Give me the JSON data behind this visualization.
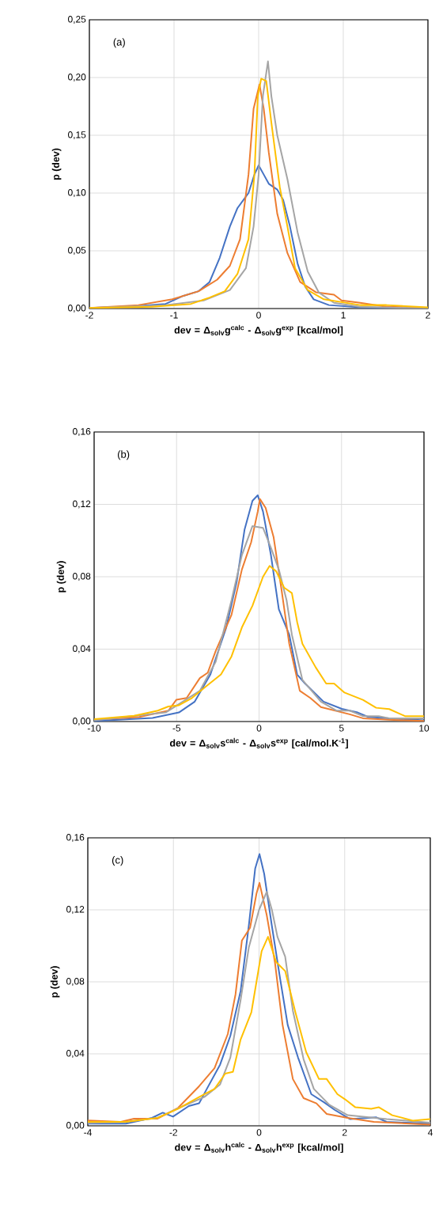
{
  "chart_data": [
    {
      "type": "line",
      "xlabel": "dev = Δ$_{solv}$g$^{calc}$ - Δ$_{solv}$g$^{exp}$ [kcal/mol]",
      "ylabel": "p (dev)",
      "annotations": [
        "(a)"
      ],
      "grid": true,
      "xlim": [
        -2,
        2
      ],
      "xticks": [
        -2,
        -1,
        0,
        1,
        2
      ],
      "ylim": [
        0,
        0.25
      ],
      "yticks": [
        {
          "value": 0,
          "label": "0,00"
        },
        {
          "value": 0.05,
          "label": "0,05"
        },
        {
          "value": 0.1,
          "label": "0,10"
        },
        {
          "value": 0.15,
          "label": "0,15"
        },
        {
          "value": 0.2,
          "label": "0,20"
        },
        {
          "value": 0.25,
          "label": "0,25"
        }
      ],
      "series": [
        {
          "color": "#4472c4",
          "x": [
            -2,
            -1.57,
            -1.1,
            -0.89,
            -0.71,
            -0.58,
            -0.46,
            -0.34,
            -0.25,
            -0.12,
            -0.05,
            0,
            0.06,
            0.12,
            0.22,
            0.29,
            0.37,
            0.46,
            0.55,
            0.65,
            0.83,
            1.2,
            2
          ],
          "values": [
            0.0005,
            0.0016,
            0.004,
            0.011,
            0.015,
            0.023,
            0.044,
            0.071,
            0.087,
            0.1,
            0.116,
            0.124,
            0.116,
            0.108,
            0.103,
            0.094,
            0.071,
            0.039,
            0.019,
            0.008,
            0.003,
            0.001,
            0
          ]
        },
        {
          "color": "#ed7d31",
          "x": [
            -2,
            -1.42,
            -1.02,
            -0.71,
            -0.49,
            -0.34,
            -0.22,
            -0.12,
            -0.06,
            0.01,
            0.06,
            0.12,
            0.22,
            0.34,
            0.49,
            0.68,
            0.89,
            0.98,
            1.2,
            1.51,
            2
          ],
          "values": [
            0.0005,
            0.003,
            0.008,
            0.015,
            0.025,
            0.037,
            0.06,
            0.116,
            0.173,
            0.194,
            0.173,
            0.135,
            0.082,
            0.048,
            0.023,
            0.014,
            0.012,
            0.007,
            0.005,
            0.0016,
            0.0005
          ]
        },
        {
          "color": "#a5a5a5",
          "x": [
            -2,
            -1.1,
            -0.65,
            -0.34,
            -0.15,
            -0.06,
            0,
            0.05,
            0.11,
            0.15,
            0.22,
            0.34,
            0.46,
            0.58,
            0.71,
            0.89,
            1.2,
            2
          ],
          "values": [
            0.0005,
            0.003,
            0.007,
            0.016,
            0.035,
            0.071,
            0.116,
            0.184,
            0.214,
            0.184,
            0.15,
            0.112,
            0.066,
            0.032,
            0.014,
            0.005,
            0.0016,
            0
          ]
        },
        {
          "color": "#ffc000",
          "x": [
            -2,
            -1.26,
            -0.8,
            -0.58,
            -0.4,
            -0.25,
            -0.12,
            -0.05,
            -0.01,
            0.03,
            0.09,
            0.15,
            0.25,
            0.34,
            0.43,
            0.58,
            0.77,
            1.2,
            1.51,
            2
          ],
          "values": [
            0.0005,
            0.0016,
            0.004,
            0.0095,
            0.015,
            0.03,
            0.06,
            0.116,
            0.184,
            0.199,
            0.197,
            0.161,
            0.105,
            0.071,
            0.035,
            0.016,
            0.008,
            0.003,
            0.003,
            0.001
          ]
        }
      ]
    },
    {
      "type": "line",
      "xlabel": "dev = Δ$_{solv}$s$^{calc}$ - Δ$_{solv}$s$^{exp}$ [cal/mol.K$^{-1}$]",
      "ylabel": "p (dev)",
      "annotations": [
        "(b)"
      ],
      "grid": true,
      "xlim": [
        -10,
        10
      ],
      "xticks": [
        -10,
        -5,
        0,
        5,
        10
      ],
      "ylim": [
        0,
        0.16
      ],
      "yticks": [
        {
          "value": 0,
          "label": "0,00"
        },
        {
          "value": 0.04,
          "label": "0,04"
        },
        {
          "value": 0.08,
          "label": "0,08"
        },
        {
          "value": 0.12,
          "label": "0,12"
        },
        {
          "value": 0.16,
          "label": "0,16"
        }
      ],
      "series": [
        {
          "color": "#4472c4",
          "x": [
            -10,
            -6.46,
            -4.86,
            -3.9,
            -2.95,
            -1.99,
            -1.36,
            -0.88,
            -0.4,
            -0.08,
            0.24,
            0.72,
            1.2,
            1.83,
            2.31,
            2.79,
            3.91,
            5.02,
            5.98,
            6.62,
            7.89,
            10
          ],
          "values": [
            0.0003,
            0.002,
            0.005,
            0.011,
            0.026,
            0.052,
            0.077,
            0.106,
            0.122,
            0.125,
            0.116,
            0.092,
            0.062,
            0.048,
            0.026,
            0.021,
            0.011,
            0.007,
            0.005,
            0.0025,
            0.0018,
            0.0007
          ]
        },
        {
          "color": "#ed7d31",
          "x": [
            -10,
            -7.26,
            -5.5,
            -5.02,
            -4.39,
            -3.59,
            -3.11,
            -2.63,
            -1.67,
            -1.04,
            -0.48,
            -0.08,
            0.05,
            0.4,
            0.88,
            1.36,
            1.83,
            2.47,
            3.11,
            3.75,
            5.5,
            6.3,
            7.89,
            10
          ],
          "values": [
            0.001,
            0.0025,
            0.006,
            0.012,
            0.013,
            0.024,
            0.027,
            0.039,
            0.059,
            0.084,
            0.099,
            0.116,
            0.123,
            0.118,
            0.102,
            0.073,
            0.043,
            0.017,
            0.013,
            0.008,
            0.004,
            0.0018,
            0.001,
            0.0003
          ]
        },
        {
          "color": "#a5a5a5",
          "x": [
            -10,
            -5.66,
            -3.59,
            -2.63,
            -1.67,
            -1.04,
            -0.4,
            0.24,
            0.72,
            1.2,
            1.67,
            1.99,
            2.63,
            3.75,
            4.71,
            5.5,
            6.3,
            7.26,
            7.89,
            10
          ],
          "values": [
            0.0007,
            0.005,
            0.017,
            0.033,
            0.067,
            0.092,
            0.108,
            0.107,
            0.096,
            0.084,
            0.067,
            0.048,
            0.023,
            0.011,
            0.006,
            0.006,
            0.003,
            0.003,
            0.0018,
            0.0018
          ]
        },
        {
          "color": "#ffc000",
          "x": [
            -10,
            -7.58,
            -6.14,
            -5.5,
            -4.86,
            -4.07,
            -3.27,
            -2.31,
            -1.67,
            -1.04,
            -0.4,
            0.24,
            0.64,
            1.04,
            1.52,
            1.99,
            2.31,
            2.63,
            3.43,
            4.07,
            4.55,
            5.18,
            6.3,
            7.1,
            7.89,
            8.85,
            10
          ],
          "values": [
            0.0013,
            0.0032,
            0.006,
            0.0083,
            0.009,
            0.013,
            0.019,
            0.026,
            0.036,
            0.052,
            0.064,
            0.08,
            0.086,
            0.083,
            0.074,
            0.071,
            0.055,
            0.043,
            0.03,
            0.021,
            0.021,
            0.016,
            0.012,
            0.0076,
            0.0069,
            0.003,
            0.003
          ]
        }
      ]
    },
    {
      "type": "line",
      "xlabel": "dev = Δ$_{solv}$h$^{calc}$ - Δ$_{solv}$h$^{exp}$ [kcal/mol]",
      "ylabel": "p (dev)",
      "annotations": [
        "(c)"
      ],
      "grid": true,
      "xlim": [
        -4,
        4
      ],
      "xticks": [
        -4,
        -2,
        0,
        2,
        4
      ],
      "ylim": [
        0,
        0.16
      ],
      "yticks": [
        {
          "value": 0,
          "label": "0,00"
        },
        {
          "value": 0.04,
          "label": "0,04"
        },
        {
          "value": 0.08,
          "label": "0,08"
        },
        {
          "value": 0.12,
          "label": "0,12"
        },
        {
          "value": 0.16,
          "label": "0,16"
        }
      ],
      "series": [
        {
          "color": "#4472c4",
          "x": [
            -4,
            -3.11,
            -2.5,
            -2.25,
            -2.01,
            -1.64,
            -1.4,
            -1.22,
            -0.91,
            -0.67,
            -0.43,
            -0.24,
            -0.09,
            0.01,
            0.12,
            0.3,
            0.49,
            0.67,
            0.91,
            1.22,
            1.52,
            1.77,
            2.13,
            2.74,
            2.98,
            4
          ],
          "values": [
            0.0012,
            0.0012,
            0.0044,
            0.0073,
            0.0051,
            0.011,
            0.0125,
            0.0205,
            0.034,
            0.05,
            0.075,
            0.111,
            0.143,
            0.151,
            0.14,
            0.111,
            0.082,
            0.056,
            0.038,
            0.0176,
            0.013,
            0.0088,
            0.0037,
            0.0047,
            0.0022,
            0.0012
          ]
        },
        {
          "color": "#ed7d31",
          "x": [
            -4,
            -3.23,
            -2.92,
            -2.37,
            -1.89,
            -1.4,
            -1.04,
            -0.73,
            -0.55,
            -0.4,
            -0.21,
            -0.06,
            0.01,
            0.18,
            0.37,
            0.55,
            0.79,
            1.04,
            1.34,
            1.58,
            2.07,
            2.68,
            4
          ],
          "values": [
            0.003,
            0.0022,
            0.004,
            0.004,
            0.01,
            0.022,
            0.032,
            0.051,
            0.073,
            0.103,
            0.11,
            0.129,
            0.135,
            0.117,
            0.091,
            0.056,
            0.026,
            0.0154,
            0.0125,
            0.0066,
            0.0044,
            0.0022,
            0.0007
          ]
        },
        {
          "color": "#a5a5a5",
          "x": [
            -4,
            -3.11,
            -2.37,
            -1.77,
            -1.28,
            -0.91,
            -0.67,
            -0.43,
            -0.24,
            0,
            0.18,
            0.3,
            0.43,
            0.61,
            0.79,
            1.04,
            1.28,
            1.64,
            2.07,
            2.98,
            4
          ],
          "values": [
            0.0015,
            0.0022,
            0.0044,
            0.011,
            0.016,
            0.023,
            0.038,
            0.07,
            0.099,
            0.12,
            0.13,
            0.12,
            0.105,
            0.094,
            0.064,
            0.037,
            0.0205,
            0.0117,
            0.0059,
            0.0037,
            0.0018
          ]
        },
        {
          "color": "#ffc000",
          "x": [
            -4,
            -3.11,
            -2.37,
            -1.89,
            -1.4,
            -1.04,
            -0.79,
            -0.61,
            -0.43,
            -0.18,
            0.06,
            0.21,
            0.4,
            0.61,
            0.85,
            1.1,
            1.4,
            1.58,
            1.83,
            2.01,
            2.25,
            2.62,
            2.8,
            3.11,
            3.59,
            4
          ],
          "values": [
            0.0022,
            0.0022,
            0.0044,
            0.0095,
            0.016,
            0.0205,
            0.029,
            0.03,
            0.048,
            0.063,
            0.097,
            0.105,
            0.091,
            0.086,
            0.063,
            0.041,
            0.026,
            0.026,
            0.0176,
            0.0147,
            0.0103,
            0.0095,
            0.0103,
            0.0059,
            0.0029,
            0.0037
          ]
        }
      ]
    }
  ]
}
